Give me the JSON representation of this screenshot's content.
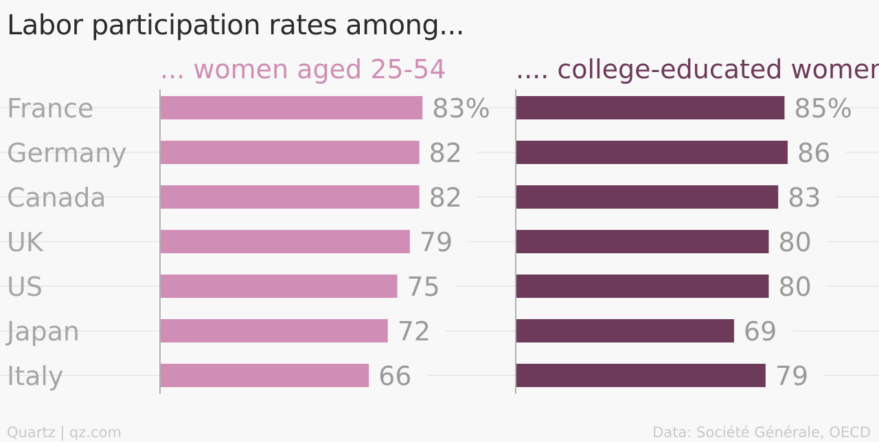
{
  "title": "Labor participation rates among...",
  "footer": {
    "brand": "Quartz | qz.com",
    "source": "Data: Société Générale, OECD"
  },
  "chart_data": {
    "type": "bar",
    "orientation": "horizontal",
    "categories": [
      "France",
      "Germany",
      "Canada",
      "UK",
      "US",
      "Japan",
      "Italy"
    ],
    "series": [
      {
        "name": "... women aged 25-54",
        "color": "#d08db5",
        "values": [
          83,
          82,
          82,
          79,
          75,
          72,
          66
        ],
        "labels": [
          "83%",
          "82",
          "82",
          "79",
          "75",
          "72",
          "66"
        ]
      },
      {
        "name": ".... college-educated women",
        "color": "#6e3a5a",
        "values": [
          85,
          86,
          83,
          80,
          80,
          69,
          79
        ],
        "labels": [
          "85%",
          "86",
          "83",
          "80",
          "80",
          "69",
          "79"
        ]
      }
    ],
    "xlim": [
      0,
      86
    ],
    "grid": true,
    "legend": "panel-titles"
  }
}
